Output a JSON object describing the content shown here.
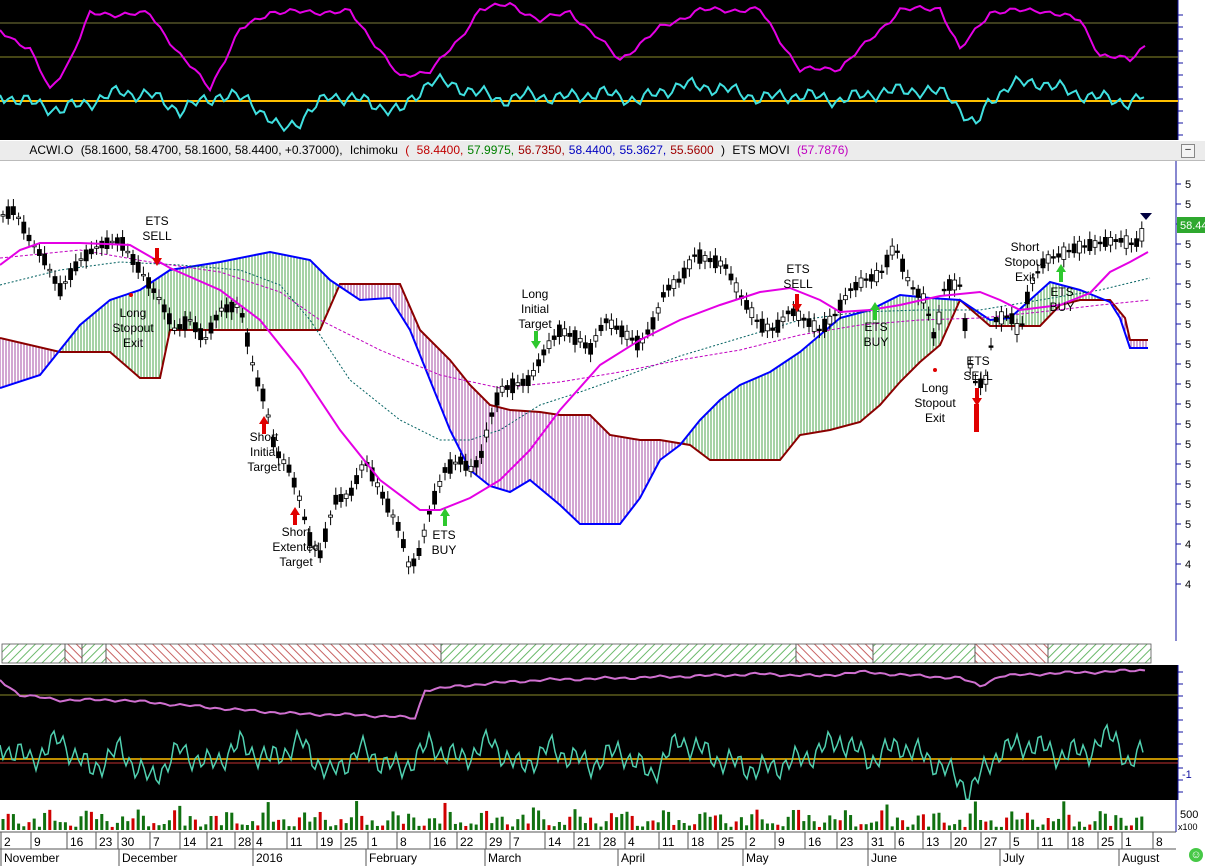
{
  "header": {
    "symbol": "ACWI.O",
    "quote": "(58.1600, 58.4700, 58.1600, 58.4400, +0.37000),",
    "ichimoku_label": "Ichimoku",
    "ichimoku_open": "(",
    "ichimoku_values": [
      {
        "text": "58.4400,",
        "color": "#c00000"
      },
      {
        "text": "57.9975,",
        "color": "#008000"
      },
      {
        "text": "56.7350,",
        "color": "#a00000"
      },
      {
        "text": "58.4400,",
        "color": "#0000c0"
      },
      {
        "text": "55.3627,",
        "color": "#0000c0"
      },
      {
        "text": "55.5600",
        "color": "#a00000"
      }
    ],
    "ichimoku_close": ")",
    "ets_label": "ETS MOVI",
    "ets_value": "(57.7876)",
    "collapse_icon": "minimize-icon"
  },
  "price_tag": "58.44",
  "annotations": [
    {
      "id": "ets-sell-1",
      "text": "ETS\nSELL"
    },
    {
      "id": "long-stopout-exit-1",
      "text": "Long\nStopout\nExit"
    },
    {
      "id": "short-initial-target",
      "text": "Short\nInitial\nTarget"
    },
    {
      "id": "short-extented-target",
      "text": "Short\nExtented\nTarget"
    },
    {
      "id": "ets-buy-1",
      "text": "ETS\nBUY"
    },
    {
      "id": "long-initial-target",
      "text": "Long\nInitial\nTarget"
    },
    {
      "id": "ets-sell-2",
      "text": "ETS\nSELL"
    },
    {
      "id": "ets-buy-2",
      "text": "ETS\nBUY"
    },
    {
      "id": "long-stopout-exit-2",
      "text": "Long\nStopout\nExit"
    },
    {
      "id": "ets-sell-3",
      "text": "ETS\nSELL"
    },
    {
      "id": "short-stopout-exit",
      "text": "Short\nStopout\nExit"
    },
    {
      "id": "ets-buy-3",
      "text": "ETS\nBUY"
    }
  ],
  "axis": {
    "day_ticks": [
      "2",
      "9",
      "16",
      "23",
      "30",
      "7",
      "14",
      "21",
      "28",
      "4",
      "11",
      "19",
      "25",
      "1",
      "8",
      "16",
      "22",
      "29",
      "7",
      "14",
      "21",
      "28",
      "4",
      "11",
      "18",
      "25",
      "2",
      "9",
      "16",
      "23",
      "31",
      "6",
      "13",
      "20",
      "27",
      "5",
      "11",
      "18",
      "25",
      "1",
      "8"
    ],
    "month_labels": [
      "November",
      "December",
      "2016",
      "February",
      "March",
      "April",
      "May",
      "June",
      "July",
      "August"
    ],
    "y_ticks_visible": [
      "5",
      "5",
      "5",
      "5",
      "5",
      "5",
      "5",
      "5",
      "5",
      "5",
      "5",
      "5",
      "5",
      "5",
      "5",
      "5",
      "5",
      "5",
      "4",
      "4",
      "4"
    ],
    "volume_scale": "500",
    "volume_multiplier": "x100",
    "indicator_scale_bottom": "-1"
  },
  "colors": {
    "candle": "#000000",
    "ets_movi": "#e400e4",
    "tenkan": "#006060",
    "kijun": "#c000c0",
    "span_a": "#0000ff",
    "span_b": "#8b0000",
    "bull_cloud": "#008000",
    "bear_cloud": "#800080",
    "osc_magenta": "#e400e4",
    "osc_cyan": "#40e0e0",
    "zero_line": "#ffc000",
    "trend_bar_up": "#6ab96a",
    "trend_bar_down": "#c86464",
    "buy_arrow": "#2ec82e",
    "sell_arrow": "#e00000"
  },
  "chart_data": {
    "type": "line",
    "symbol": "ACWI.O",
    "last_ohlc": {
      "open": 58.16,
      "high": 58.47,
      "low": 58.16,
      "close": 58.44,
      "change": 0.37
    },
    "ichimoku": {
      "tenkan": 58.44,
      "kijun": 57.9975,
      "chikou": 56.735,
      "span_a": 58.44,
      "span_b": 55.3627,
      "span_b_alt": 55.56
    },
    "ets_movi": 57.7876,
    "trend_segments": [
      "up",
      "down",
      "up",
      "down",
      "up",
      "down",
      "up",
      "down",
      "up",
      "down",
      "up"
    ],
    "signals": [
      "ETS SELL",
      "Long Stopout Exit",
      "Short Initial Target",
      "Short Extented Target",
      "ETS BUY",
      "Long Initial Target",
      "ETS SELL",
      "ETS BUY",
      "Long Stopout Exit",
      "ETS SELL",
      "Short Stopout Exit",
      "ETS BUY"
    ]
  }
}
